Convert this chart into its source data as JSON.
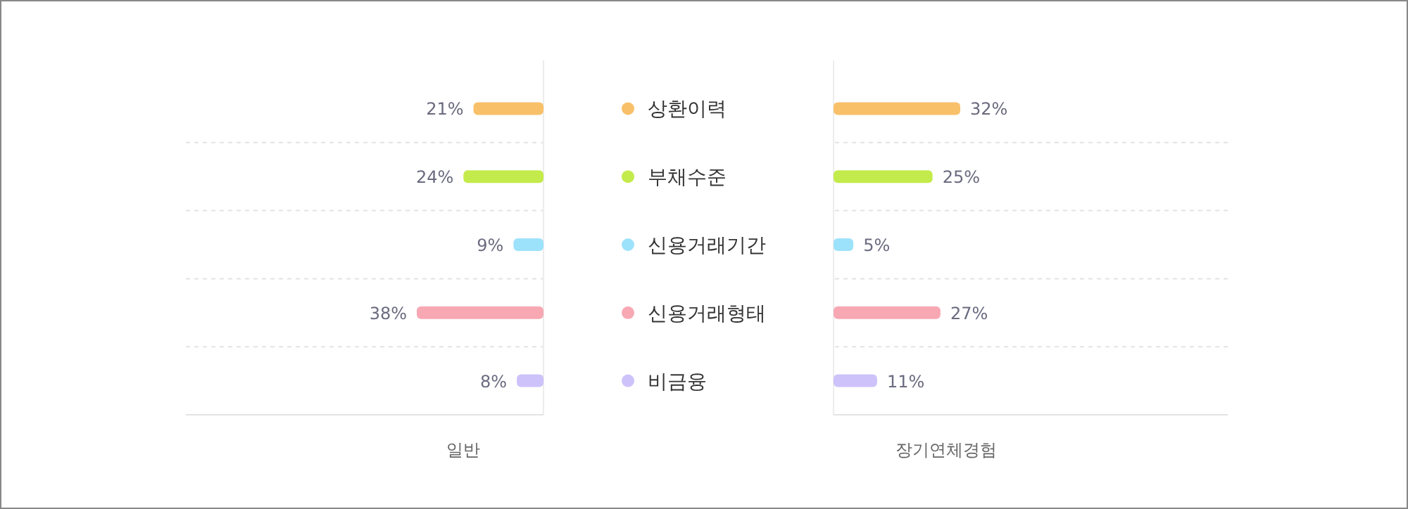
{
  "chart_data": [
    {
      "type": "bar",
      "orientation": "horizontal",
      "xlabel": "일반",
      "categories": [
        "상환이력",
        "부채수준",
        "신용거래기간",
        "신용거래형태",
        "비금융"
      ],
      "values": [
        21,
        24,
        9,
        38,
        8
      ],
      "value_labels": [
        "21%",
        "24%",
        "9%",
        "38%",
        "8%"
      ],
      "colors": [
        "#f9c06a",
        "#c4eb4c",
        "#9de2fb",
        "#f7a8b3",
        "#cdc2fa"
      ],
      "grid": true,
      "tick_labels": "y"
    },
    {
      "type": "bar",
      "orientation": "horizontal",
      "xlabel": "장기연체경험",
      "categories": [
        null,
        null,
        null,
        null,
        null
      ],
      "values": [
        32,
        25,
        5,
        27,
        11
      ],
      "value_labels": [
        "32%",
        "25%",
        "5%",
        "27%",
        "11%"
      ],
      "colors": [
        "#f9c06a",
        "#c4eb4c",
        "#9de2fb",
        "#f7a8b3",
        "#cdc2fa"
      ],
      "grid": true
    }
  ]
}
